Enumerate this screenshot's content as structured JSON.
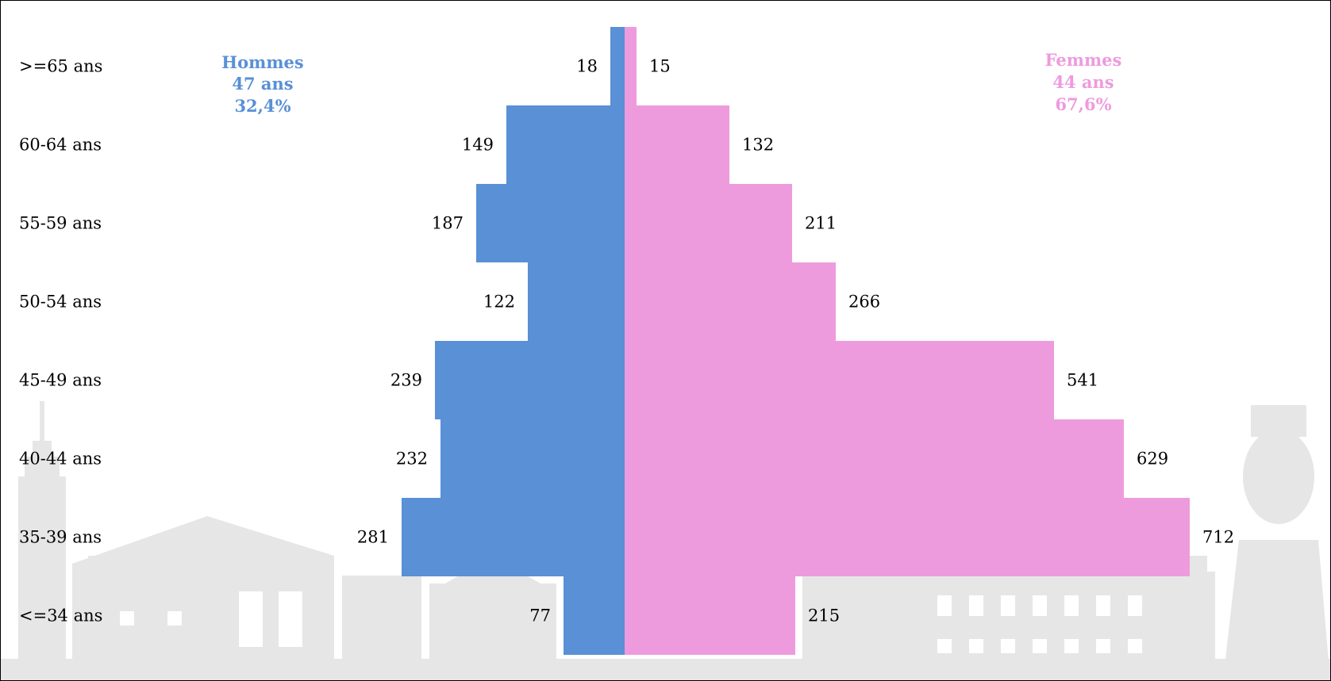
{
  "chart_data": {
    "type": "bar",
    "orientation": "horizontal",
    "style": "population-pyramid",
    "categories": [
      ">=65 ans",
      "60-64 ans",
      "55-59 ans",
      "50-54 ans",
      "45-49 ans",
      "40-44 ans",
      "35-39 ans",
      "<=34 ans"
    ],
    "series": [
      {
        "name": "Hommes",
        "side": "left",
        "color": "#5990d6",
        "values": [
          18,
          149,
          187,
          122,
          239,
          232,
          281,
          77
        ]
      },
      {
        "name": "Femmes",
        "side": "right",
        "color": "#ee9bde",
        "values": [
          15,
          132,
          211,
          266,
          541,
          629,
          712,
          215
        ]
      }
    ],
    "xlim": [
      -281,
      712
    ],
    "grid": false,
    "value_labels": true,
    "background": "faded grey city skyline illustration"
  },
  "legend": {
    "hommes": {
      "title": "Hommes",
      "age": "47 ans",
      "share": "32,4%",
      "color": "#5990d6"
    },
    "femmes": {
      "title": "Femmes",
      "age": "44 ans",
      "share": "67,6%",
      "color": "#ee9bde"
    }
  }
}
